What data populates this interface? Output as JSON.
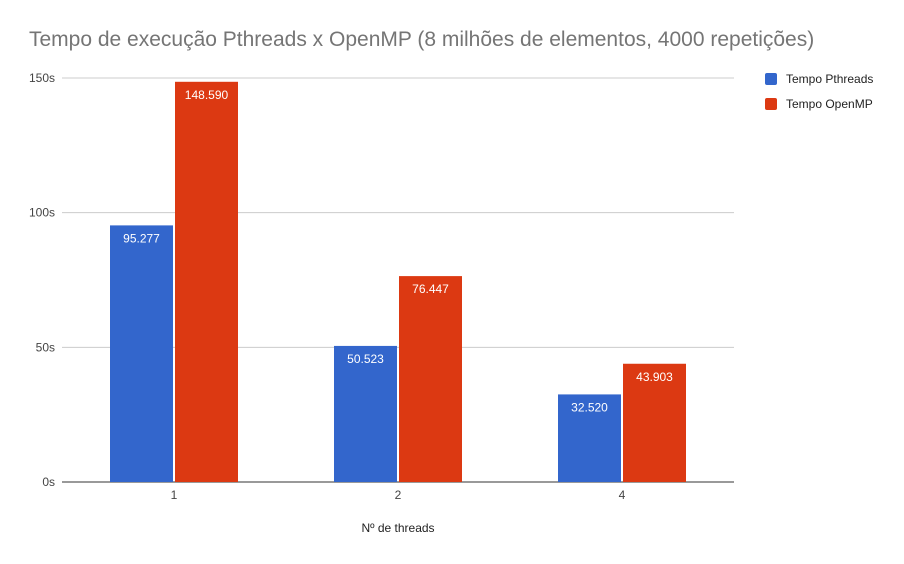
{
  "chart_data": {
    "type": "bar",
    "title": "Tempo de execução Pthreads x OpenMP (8 milhões de elementos, 4000 repetições)",
    "xlabel": "Nº de threads",
    "ylabel": "",
    "categories": [
      "1",
      "2",
      "4"
    ],
    "series": [
      {
        "name": "Tempo Pthreads",
        "color": "#3366cc",
        "values": [
          95.277,
          50.523,
          32.52
        ],
        "labels": [
          "95.277",
          "50.523",
          "32.520"
        ]
      },
      {
        "name": "Tempo OpenMP",
        "color": "#dc3912",
        "values": [
          148.59,
          76.447,
          43.903
        ],
        "labels": [
          "148.590",
          "76.447",
          "43.903"
        ]
      }
    ],
    "ylim": [
      0,
      150
    ],
    "yticks": [
      0,
      50,
      100,
      150
    ],
    "ytick_labels": [
      "0s",
      "50s",
      "100s",
      "150s"
    ],
    "grid": true,
    "legend_position": "right"
  }
}
